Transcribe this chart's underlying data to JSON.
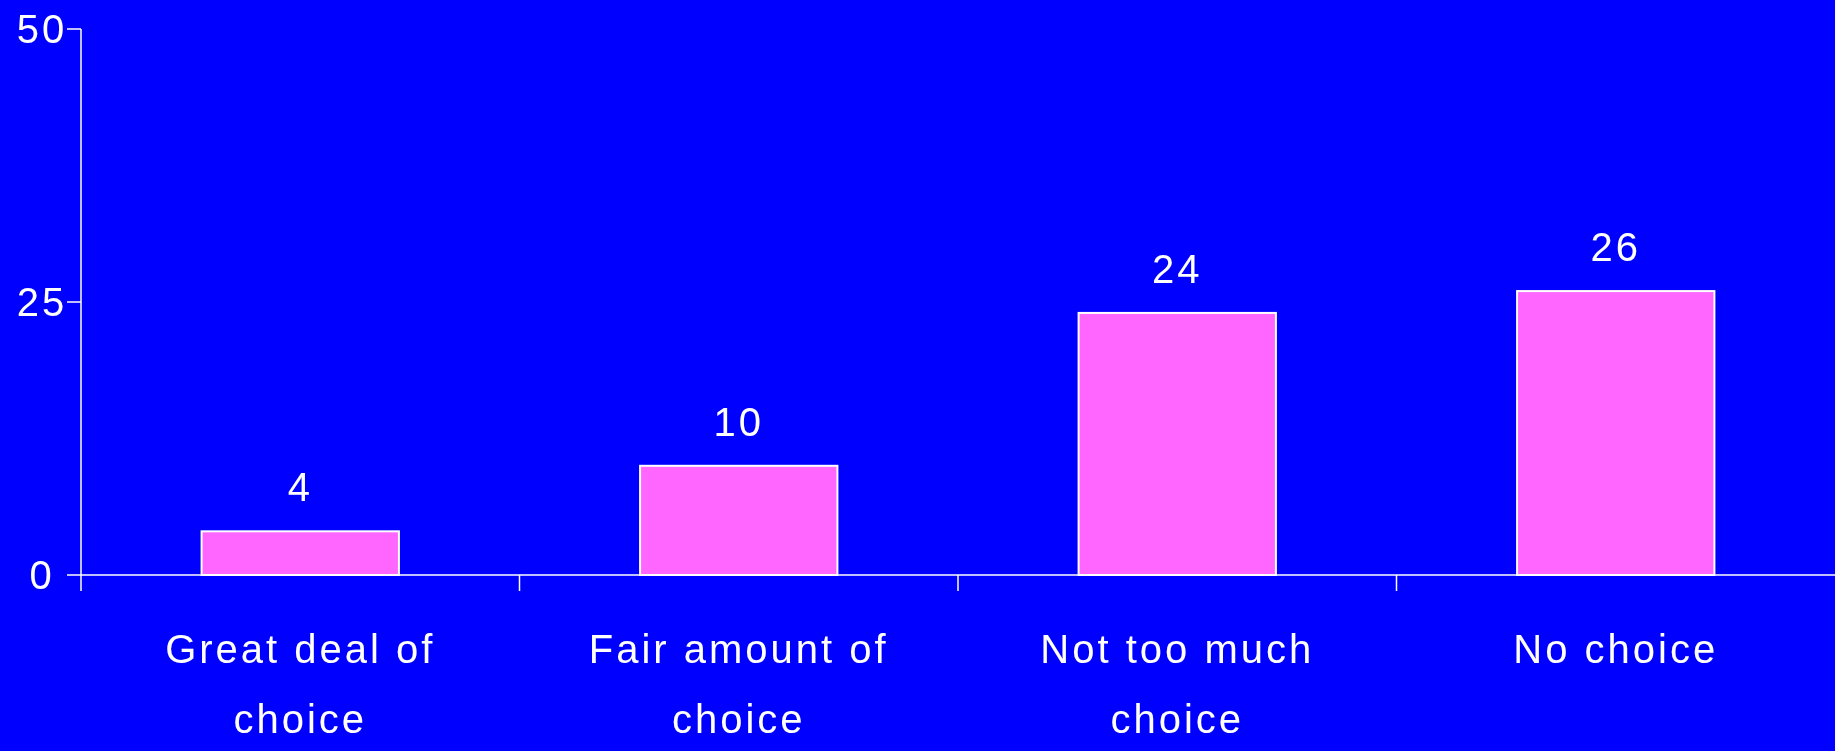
{
  "chart_data": {
    "type": "bar",
    "categories": [
      "Great deal of choice",
      "Fair amount of choice",
      "Not too much choice",
      "No choice"
    ],
    "values": [
      4,
      10,
      24,
      26
    ],
    "color": "#ff66ff",
    "ylim": [
      0,
      50
    ],
    "yticks": [
      0,
      25,
      50
    ],
    "data_labels": true,
    "grid": false
  }
}
